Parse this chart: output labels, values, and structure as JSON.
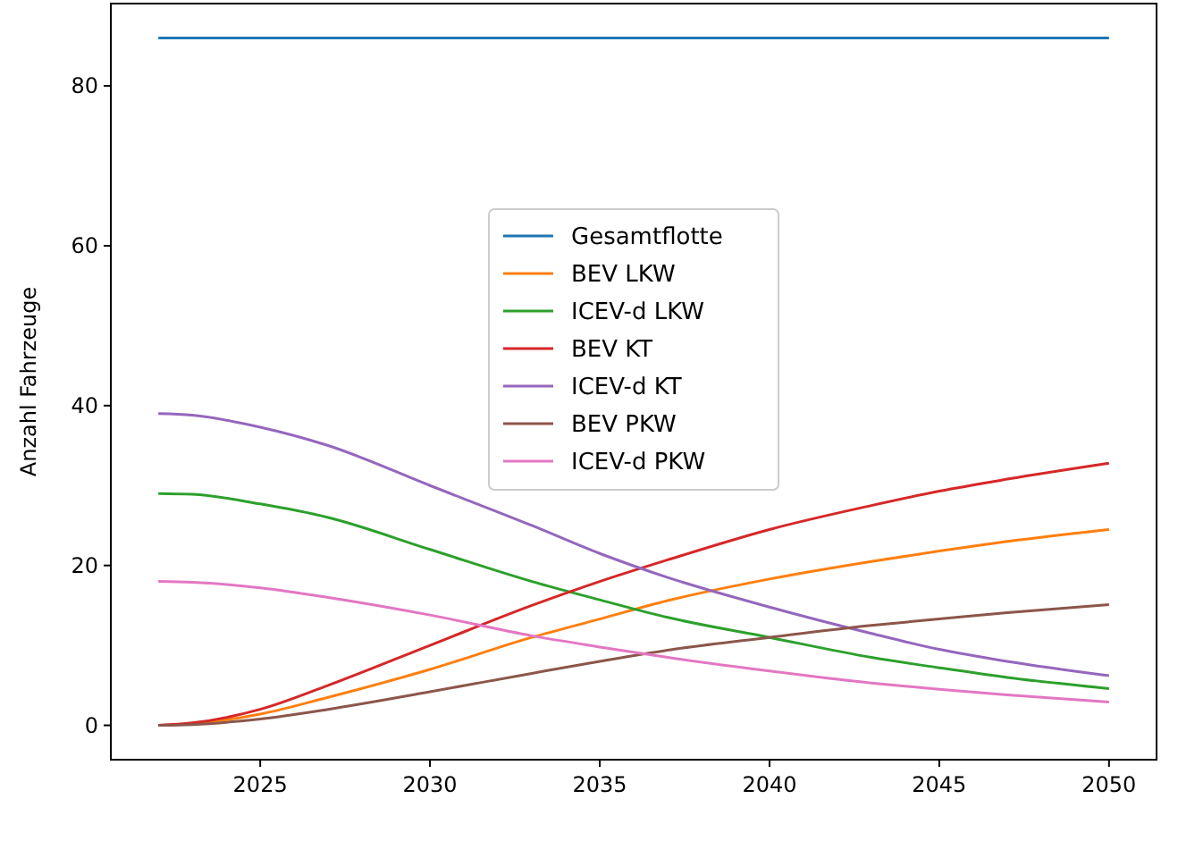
{
  "chart_data": {
    "type": "line",
    "ylabel": "Anzahl Fahrzeuge",
    "x": [
      2022,
      2023,
      2025,
      2027,
      2030,
      2033,
      2035,
      2037,
      2040,
      2043,
      2045,
      2047,
      2050
    ],
    "series": [
      {
        "name": "Gesamtflotte",
        "color": "#1f77b4",
        "values": [
          86,
          86,
          86,
          86,
          86,
          86,
          86,
          86,
          86,
          86,
          86,
          86,
          86
        ]
      },
      {
        "name": "BEV LKW",
        "color": "#ff7f0e",
        "values": [
          0,
          0.2,
          1.4,
          3.5,
          7,
          11,
          13.3,
          15.6,
          18.3,
          20.5,
          21.8,
          23,
          24.5
        ]
      },
      {
        "name": "ICEV-d LKW",
        "color": "#2ca02c",
        "values": [
          29,
          28.9,
          27.7,
          26,
          22,
          18,
          15.7,
          13.5,
          11,
          8.5,
          7.2,
          6,
          4.6
        ]
      },
      {
        "name": "BEV KT",
        "color": "#d62728",
        "values": [
          0,
          0.3,
          2,
          5,
          10,
          15,
          18,
          20.7,
          24.5,
          27.5,
          29.3,
          30.8,
          32.8
        ]
      },
      {
        "name": "ICEV-d KT",
        "color": "#9467bd",
        "values": [
          39,
          38.8,
          37.3,
          35,
          30,
          25,
          21.5,
          18.5,
          14.8,
          11.5,
          9.5,
          8,
          6.2
        ]
      },
      {
        "name": "BEV PKW",
        "color": "#8c564b",
        "values": [
          0,
          0.1,
          0.8,
          2,
          4.2,
          6.5,
          8,
          9.4,
          11,
          12.5,
          13.3,
          14.1,
          15.1
        ]
      },
      {
        "name": "ICEV-d PKW",
        "color": "#e377c2",
        "values": [
          18,
          17.9,
          17.2,
          16,
          13.8,
          11.2,
          9.8,
          8.5,
          6.8,
          5.3,
          4.5,
          3.8,
          2.9
        ]
      }
    ],
    "xlim": [
      2020.6,
      2051.4
    ],
    "xticks": [
      2025,
      2030,
      2035,
      2040,
      2045,
      2050
    ],
    "ylim": [
      -4.3,
      90.3
    ],
    "yticks": [
      0,
      20,
      40,
      60,
      80
    ],
    "grid": false,
    "legend": "center"
  }
}
